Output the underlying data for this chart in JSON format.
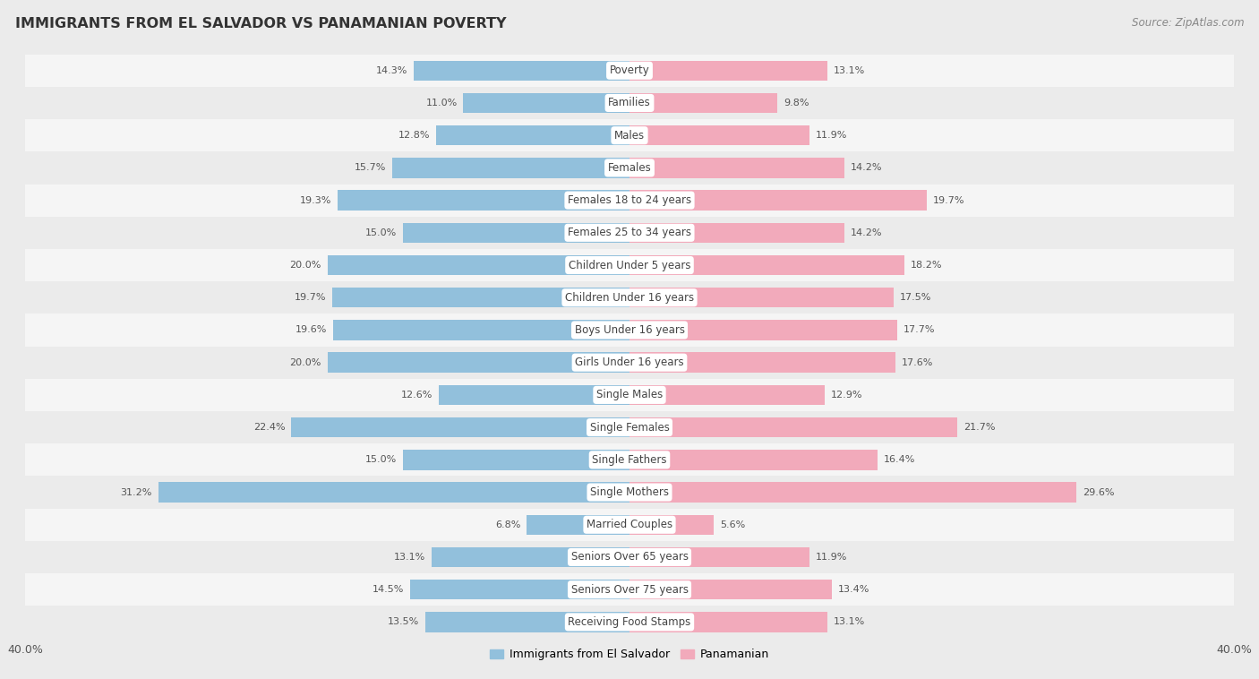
{
  "title": "IMMIGRANTS FROM EL SALVADOR VS PANAMANIAN POVERTY",
  "source": "Source: ZipAtlas.com",
  "categories": [
    "Poverty",
    "Families",
    "Males",
    "Females",
    "Females 18 to 24 years",
    "Females 25 to 34 years",
    "Children Under 5 years",
    "Children Under 16 years",
    "Boys Under 16 years",
    "Girls Under 16 years",
    "Single Males",
    "Single Females",
    "Single Fathers",
    "Single Mothers",
    "Married Couples",
    "Seniors Over 65 years",
    "Seniors Over 75 years",
    "Receiving Food Stamps"
  ],
  "left_values": [
    14.3,
    11.0,
    12.8,
    15.7,
    19.3,
    15.0,
    20.0,
    19.7,
    19.6,
    20.0,
    12.6,
    22.4,
    15.0,
    31.2,
    6.8,
    13.1,
    14.5,
    13.5
  ],
  "right_values": [
    13.1,
    9.8,
    11.9,
    14.2,
    19.7,
    14.2,
    18.2,
    17.5,
    17.7,
    17.6,
    12.9,
    21.7,
    16.4,
    29.6,
    5.6,
    11.9,
    13.4,
    13.1
  ],
  "left_color": "#92C0DC",
  "right_color": "#F2AABB",
  "left_label": "Immigrants from El Salvador",
  "right_label": "Panamanian",
  "xlim": 40.0,
  "bg_row_odd": "#EBEBEB",
  "bg_row_even": "#F5F5F5",
  "title_fontsize": 11.5,
  "source_fontsize": 8.5,
  "cat_fontsize": 8.5,
  "value_fontsize": 8.0,
  "bar_height": 0.62
}
